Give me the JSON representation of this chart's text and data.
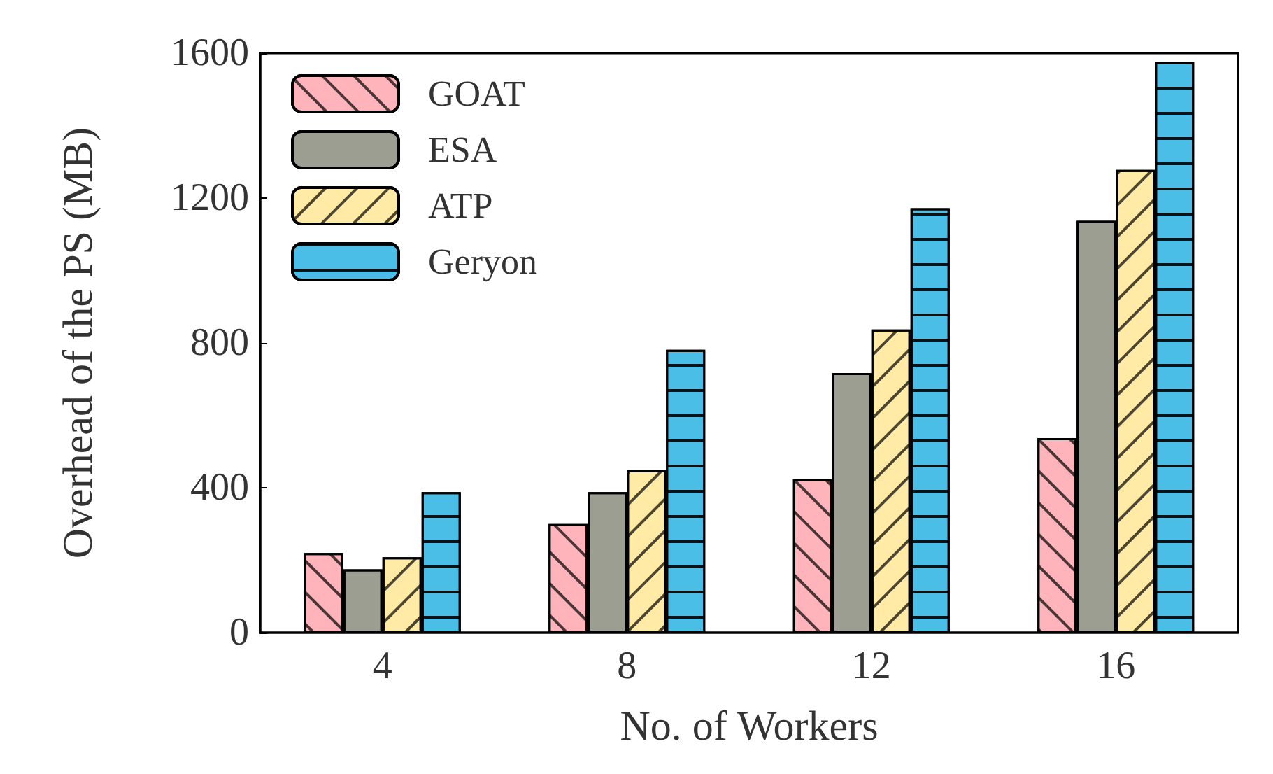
{
  "chart_data": {
    "type": "bar",
    "xlabel": "No. of Workers",
    "ylabel": "Overhead of the PS (MB)",
    "categories": [
      "4",
      "8",
      "12",
      "16"
    ],
    "series": [
      {
        "name": "GOAT",
        "color": "#ffb3ba",
        "values": [
          220,
          300,
          423,
          537
        ]
      },
      {
        "name": "ESA",
        "color": "#9c9e92",
        "values": [
          175,
          388,
          717,
          1137
        ]
      },
      {
        "name": "ATP",
        "color": "#ffeaa6",
        "values": [
          208,
          449,
          837,
          1278
        ]
      },
      {
        "name": "Geryon",
        "color": "#4bbee8",
        "values": [
          388,
          781,
          1172,
          1577
        ]
      }
    ],
    "ylim": [
      0,
      1600
    ],
    "yticks": [
      0,
      400,
      800,
      1200,
      1600
    ],
    "grid": false,
    "legend": "top left"
  }
}
